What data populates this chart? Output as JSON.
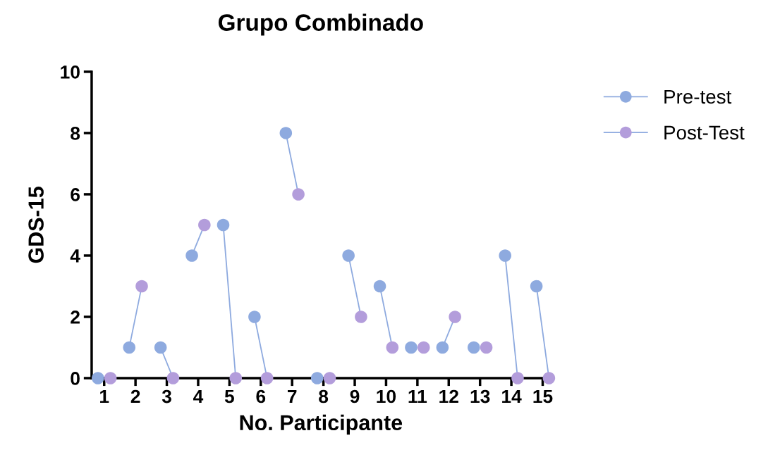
{
  "chart_data": {
    "type": "scatter",
    "title": "Grupo Combinado",
    "xlabel": "No. Participante",
    "ylabel": "GDS-15",
    "xlim": [
      0.6,
      15.23
    ],
    "xticks": [
      1,
      2,
      3,
      4,
      5,
      6,
      7,
      8,
      9,
      10,
      11,
      12,
      13,
      14,
      15
    ],
    "series": [
      {
        "name": "Pre-test",
        "color": "#8eaadf",
        "x": [
          0.8,
          1.8,
          2.8,
          3.8,
          4.8,
          5.8,
          6.8,
          7.8,
          8.8,
          9.8,
          10.8,
          11.8,
          12.8,
          13.8,
          14.8
        ],
        "values": [
          0,
          1,
          1,
          4,
          5,
          2,
          8,
          0,
          4,
          3,
          1,
          1,
          1,
          4,
          3
        ]
      },
      {
        "name": "Post-Test",
        "color": "#b39ddb",
        "x": [
          1.2,
          2.2,
          3.2,
          4.2,
          5.2,
          6.2,
          7.2,
          8.2,
          9.2,
          10.2,
          11.2,
          12.2,
          13.2,
          14.2,
          15.2
        ],
        "values": [
          0,
          3,
          0,
          5,
          0,
          0,
          6,
          0,
          2,
          1,
          1,
          2,
          1,
          0,
          0
        ]
      },
      {
        "type": "line",
        "marker": "none",
        "color": "#8eaadf",
        "x": [
          1.8,
          2.2
        ],
        "values": [
          1,
          3
        ]
      },
      {
        "type": "line",
        "marker": "none",
        "color": "#8eaadf",
        "x": [
          2.8,
          3.2
        ],
        "values": [
          1,
          0
        ]
      },
      {
        "type": "line",
        "marker": "none",
        "color": "#8eaadf",
        "x": [
          3.8,
          4.2
        ],
        "values": [
          4,
          5
        ]
      },
      {
        "type": "line",
        "marker": "none",
        "color": "#8eaadf",
        "x": [
          4.8,
          5.2
        ],
        "values": [
          5,
          0
        ]
      },
      {
        "type": "line",
        "marker": "none",
        "color": "#8eaadf",
        "x": [
          5.8,
          6.2
        ],
        "values": [
          2,
          0
        ]
      },
      {
        "type": "line",
        "marker": "none",
        "color": "#8eaadf",
        "x": [
          6.8,
          7.2
        ],
        "values": [
          8,
          6
        ]
      },
      {
        "type": "line",
        "marker": "none",
        "color": "#8eaadf",
        "x": [
          8.8,
          9.2
        ],
        "values": [
          4,
          2
        ]
      },
      {
        "type": "line",
        "marker": "none",
        "color": "#8eaadf",
        "x": [
          9.8,
          10.2
        ],
        "values": [
          3,
          1
        ]
      },
      {
        "type": "line",
        "marker": "none",
        "color": "#8eaadf",
        "x": [
          11.8,
          12.2
        ],
        "values": [
          1,
          2
        ]
      },
      {
        "type": "line",
        "marker": "none",
        "color": "#8eaadf",
        "x": [
          13.8,
          14.2
        ],
        "values": [
          4,
          0
        ]
      },
      {
        "type": "line",
        "marker": "none",
        "color": "#8eaadf",
        "x": [
          14.8,
          15.2
        ],
        "values": [
          3,
          0
        ]
      }
    ],
    "ylim": [
      0,
      10
    ],
    "yticks": [
      0,
      2,
      4,
      6,
      8,
      10
    ],
    "grid": false,
    "legend": "top right",
    "marker": "circle",
    "line_style": "solid"
  }
}
